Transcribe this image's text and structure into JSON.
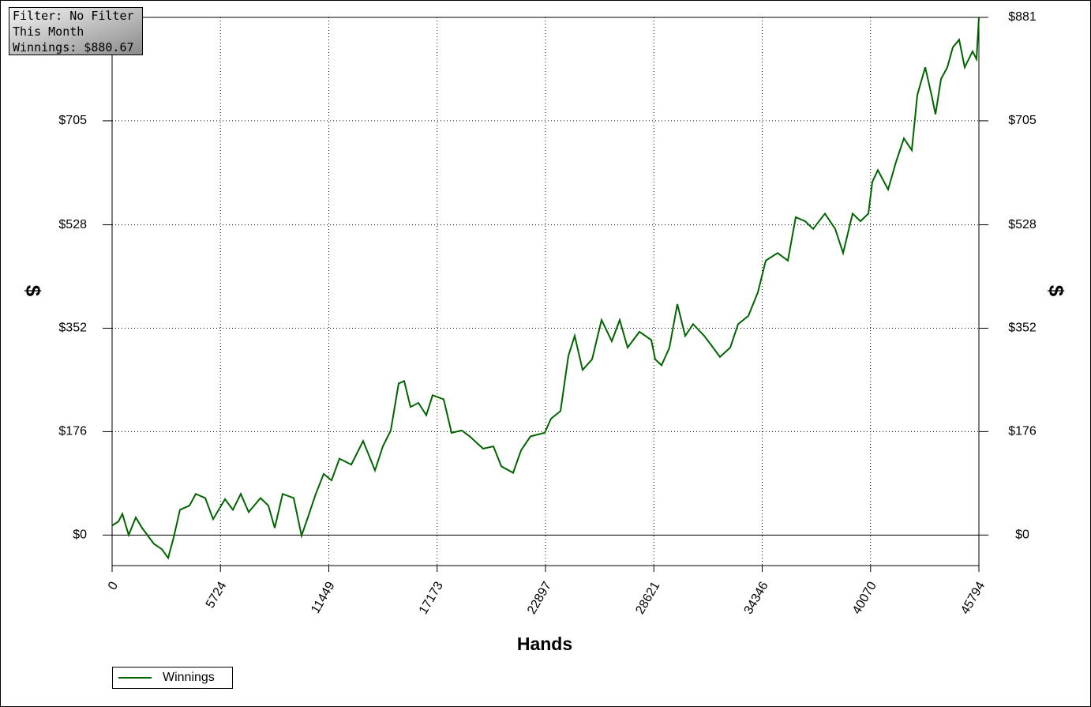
{
  "chart_data": {
    "type": "line",
    "title": "Winnings",
    "x_label": "Hands",
    "y_label": "$",
    "annotations": [
      "Filter: No Filter",
      "This Month",
      "Winnings: $880.67"
    ],
    "xlim": [
      0,
      45794
    ],
    "xticks": [
      0,
      5724,
      11449,
      17173,
      22897,
      28621,
      34346,
      40070,
      45794
    ],
    "ylim": [
      -52,
      881
    ],
    "yticks": [
      {
        "value": 0,
        "label": "$0"
      },
      {
        "value": 176,
        "label": "$176"
      },
      {
        "value": 352,
        "label": "$352"
      },
      {
        "value": 528,
        "label": "$528"
      },
      {
        "value": 705,
        "label": "$705"
      },
      {
        "value": 881,
        "label": "$881"
      }
    ],
    "grid": true,
    "legend": "bottom-left",
    "x": [
      0,
      334,
      542,
      876,
      1251,
      1585,
      2210,
      2627,
      2961,
      3253,
      3587,
      4087,
      4421,
      4921,
      5338,
      5964,
      6381,
      6798,
      7215,
      7841,
      8258,
      8591,
      9008,
      9592,
      10009,
      10343,
      10760,
      11177,
      11594,
      12011,
      12637,
      13262,
      13888,
      14305,
      14722,
      15139,
      15431,
      15765,
      16182,
      16599,
      16933,
      17517,
      17934,
      18476,
      18893,
      19602,
      20144,
      20561,
      21187,
      21604,
      22104,
      22855,
      23188,
      23689,
      24106,
      24440,
      24857,
      25357,
      25858,
      26400,
      26817,
      27234,
      27860,
      28485,
      28694,
      29027,
      29444,
      29861,
      30278,
      30696,
      31280,
      31613,
      32114,
      32656,
      33073,
      33615,
      34116,
      34533,
      35158,
      35700,
      36117,
      36618,
      37035,
      37661,
      38203,
      38620,
      39120,
      39537,
      39954,
      40163,
      40455,
      40997,
      41414,
      41831,
      42248,
      42540,
      42957,
      43290,
      43499,
      43791,
      44125,
      44417,
      44750,
      45042,
      45459,
      45668,
      45794
    ],
    "series": [
      {
        "name": "Winnings",
        "color": "#006400",
        "values": [
          16,
          23,
          36,
          0,
          30,
          12,
          -15,
          -24,
          -39,
          -4,
          43,
          50,
          70,
          63,
          27,
          61,
          43,
          70,
          39,
          63,
          50,
          12,
          70,
          63,
          -1,
          30,
          70,
          104,
          93,
          130,
          120,
          160,
          110,
          151,
          178,
          258,
          262,
          218,
          225,
          204,
          238,
          231,
          174,
          178,
          168,
          147,
          151,
          117,
          106,
          144,
          168,
          174,
          198,
          211,
          305,
          339,
          281,
          299,
          366,
          330,
          366,
          319,
          346,
          332,
          299,
          289,
          319,
          393,
          339,
          359,
          339,
          325,
          303,
          319,
          359,
          373,
          413,
          467,
          480,
          467,
          541,
          534,
          521,
          547,
          521,
          480,
          547,
          534,
          547,
          601,
          621,
          588,
          635,
          675,
          655,
          749,
          796,
          749,
          716,
          776,
          796,
          830,
          843,
          796,
          823,
          810,
          880.67
        ]
      }
    ]
  }
}
